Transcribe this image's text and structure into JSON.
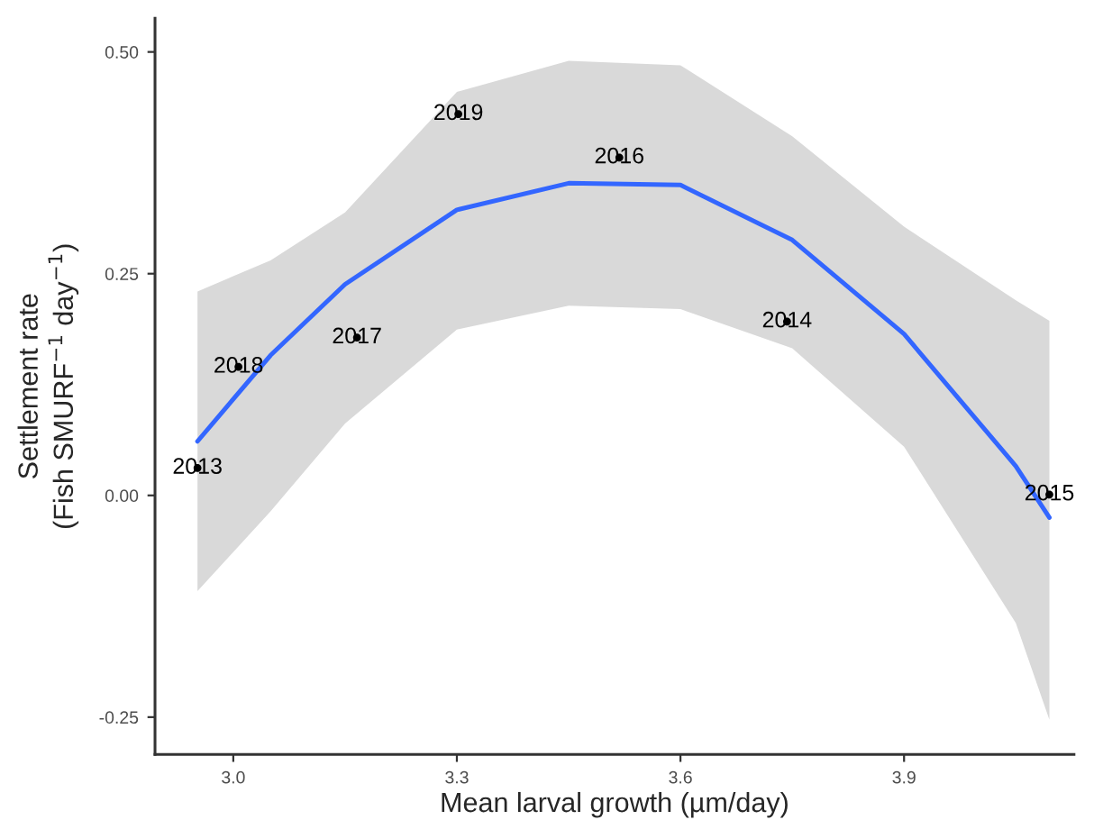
{
  "chart_data": {
    "type": "scatter",
    "xlabel": "Mean larval growth (µm/day)",
    "ylabel": "Settlement rate\n(Fish SMURF$^{−1}$ day$^{−1}$)",
    "xlim": [
      2.895,
      4.128
    ],
    "xticks": [
      {
        "value": 3.0,
        "label": "3.0"
      },
      3.3,
      3.6,
      3.9
    ],
    "ylim": [
      -0.292,
      0.538
    ],
    "yticks": [
      {
        "value": -0.25,
        "label": "-0.25"
      },
      {
        "value": 0.0,
        "label": "0.00"
      },
      0.25,
      {
        "value": 0.5,
        "label": "0.50"
      }
    ],
    "grid": false,
    "legend": false,
    "series": [
      {
        "color": "#000000",
        "marker": "circle",
        "x": [
          2.952,
          3.007,
          3.166,
          3.302,
          3.518,
          3.743,
          4.095
        ],
        "values": [
          0.031,
          0.145,
          0.178,
          0.43,
          0.381,
          0.196,
          0.001
        ]
      },
      {
        "type": "line",
        "color": "#3366ff",
        "line_style": "solid",
        "marker": "none",
        "x": [
          2.952,
          3.05,
          3.15,
          3.3,
          3.45,
          3.6,
          3.75,
          3.9,
          4.05,
          4.095
        ],
        "values": [
          0.061,
          0.158,
          0.238,
          0.322,
          0.352,
          0.35,
          0.288,
          0.182,
          0.033,
          -0.025
        ],
        "lower": [
          -0.108,
          -0.018,
          0.081,
          0.187,
          0.214,
          0.21,
          0.166,
          0.055,
          -0.144,
          -0.253
        ],
        "upper": [
          0.23,
          0.265,
          0.319,
          0.455,
          0.49,
          0.485,
          0.405,
          0.303,
          0.22,
          0.197
        ]
      }
    ],
    "annotations": [
      {
        "text": "2013",
        "x": 2.952,
        "y": 0.031
      },
      {
        "text": "2018",
        "x": 3.007,
        "y": 0.145
      },
      {
        "text": "2017",
        "x": 3.166,
        "y": 0.178
      },
      {
        "text": "2019",
        "x": 3.302,
        "y": 0.43
      },
      {
        "text": "2016",
        "x": 3.518,
        "y": 0.381
      },
      {
        "text": "2014",
        "x": 3.743,
        "y": 0.196
      },
      {
        "text": "2015",
        "x": 4.095,
        "y": 0.001
      }
    ]
  }
}
